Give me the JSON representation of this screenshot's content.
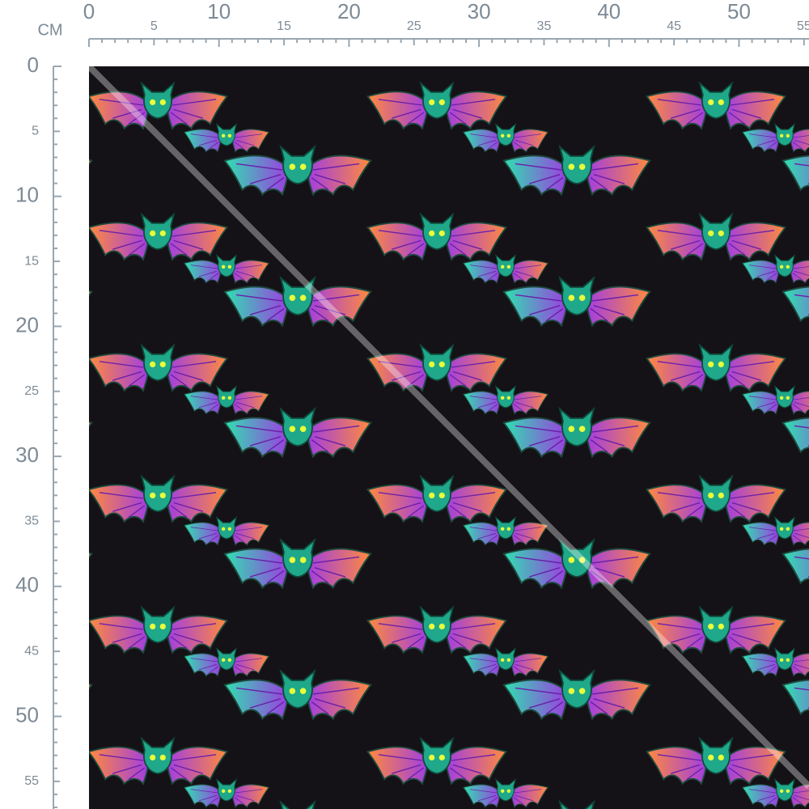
{
  "ruler": {
    "unit": "CM",
    "top_ticks": [
      0,
      5,
      10,
      15,
      20,
      25,
      30,
      35,
      40,
      45,
      50,
      55
    ],
    "left_ticks": [
      0,
      5,
      10,
      15,
      20,
      25,
      30,
      35,
      40,
      45,
      50,
      55
    ]
  }
}
